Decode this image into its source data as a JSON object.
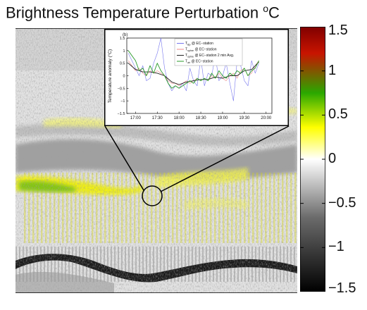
{
  "figure": {
    "title": "Brightness Temperature Perturbation",
    "title_unit_sup": "o",
    "title_unit": "C"
  },
  "colorbar": {
    "ticks": [
      "1.5",
      "1",
      "0.5",
      "0",
      "−0.5",
      "−1",
      "−1.5"
    ],
    "values": [
      1.5,
      1,
      0.5,
      0,
      -0.5,
      -1,
      -1.5
    ],
    "range": [
      -1.5,
      1.5
    ],
    "colors": [
      "#000000",
      "#6b6b6b",
      "#ffffff",
      "#ffff00",
      "#2aa800",
      "#c81400",
      "#800000"
    ]
  },
  "chart_data": {
    "type": "line",
    "panel_label": "(b)",
    "ylabel": "Temperature anomaly (°C)",
    "xlabel": "",
    "x_ticks": [
      "17:00",
      "17:30",
      "18:00",
      "18:30",
      "19:00",
      "19:30",
      "20:00"
    ],
    "y_ticks": [
      "1.5",
      "1",
      "0.5",
      "0",
      "−0.5",
      "−1",
      "−1.5"
    ],
    "xlim": [
      "17:00",
      "20:00"
    ],
    "ylim": [
      -1.5,
      1.5
    ],
    "legend_location": "top-center",
    "series": [
      {
        "legend_main": "T",
        "legend_sub": "Bp",
        "legend_rest": " @ EC−station",
        "color": "#7777ee",
        "x": [
          "16:50",
          "17:00",
          "17:05",
          "17:10",
          "17:15",
          "17:20",
          "17:25",
          "17:30",
          "17:35",
          "17:40",
          "17:45",
          "17:50",
          "17:55",
          "18:00",
          "18:05",
          "18:10",
          "18:15",
          "18:20",
          "18:25",
          "18:30",
          "18:35",
          "18:40",
          "18:45",
          "18:50",
          "18:55",
          "19:00",
          "19:05",
          "19:10",
          "19:15",
          "19:20",
          "19:25",
          "19:30",
          "19:35",
          "19:40",
          "19:45",
          "19:50"
        ],
        "y": [
          0.9,
          0.3,
          0.0,
          0.4,
          -0.2,
          -0.1,
          0.5,
          0.9,
          1.5,
          0.3,
          -0.3,
          -0.6,
          -0.4,
          -0.5,
          -0.3,
          -0.6,
          0.3,
          -0.2,
          -0.4,
          0.7,
          -0.4,
          0.1,
          0.0,
          0.8,
          -0.2,
          0.0,
          0.5,
          -0.3,
          -1.0,
          0.6,
          0.4,
          -0.2,
          -0.4,
          0.6,
          0.1,
          0.5
        ]
      },
      {
        "legend_main": "T",
        "legend_sub": "sphre",
        "legend_rest": " @ EC−station",
        "color": "#ee8888",
        "x": [
          "16:50",
          "17:00",
          "17:05",
          "17:10",
          "17:15",
          "17:20",
          "17:25",
          "17:30",
          "17:35",
          "17:40",
          "17:45",
          "17:50",
          "17:55",
          "18:00",
          "18:05",
          "18:10",
          "18:15",
          "18:20",
          "18:25",
          "18:30",
          "18:35",
          "18:40",
          "18:45",
          "18:50",
          "18:55",
          "19:00",
          "19:05",
          "19:10",
          "19:15",
          "19:20",
          "19:25",
          "19:30",
          "19:35",
          "19:40",
          "19:45",
          "19:50"
        ],
        "y": [
          0.6,
          0.2,
          0.3,
          0.1,
          0.0,
          0.2,
          0.1,
          0.2,
          0.1,
          0.0,
          -0.2,
          -0.3,
          -0.3,
          -0.4,
          -0.3,
          -0.2,
          -0.3,
          -0.2,
          -0.1,
          -0.2,
          -0.1,
          -0.2,
          0.0,
          -0.1,
          0.1,
          -0.1,
          -0.2,
          0.0,
          0.1,
          -0.1,
          0.2,
          0.3,
          0.0,
          0.1,
          0.4,
          0.6
        ]
      },
      {
        "legend_main": "T",
        "legend_sub": "sphre",
        "legend_rest": " @ EC−station 2 min Avg.",
        "color": "#222222",
        "x": [
          "16:50",
          "17:00",
          "17:10",
          "17:20",
          "17:30",
          "17:40",
          "17:50",
          "18:00",
          "18:10",
          "18:20",
          "18:30",
          "18:40",
          "18:50",
          "19:00",
          "19:10",
          "19:20",
          "19:30",
          "19:40",
          "19:50"
        ],
        "y": [
          0.5,
          0.25,
          0.15,
          0.15,
          0.1,
          0.0,
          -0.25,
          -0.35,
          -0.25,
          -0.2,
          -0.15,
          -0.15,
          -0.05,
          -0.1,
          0.0,
          0.0,
          0.2,
          0.25,
          0.55
        ]
      },
      {
        "legend_main": "T",
        "legend_sub": "air",
        "legend_rest": " @ EC−station",
        "color": "#2a9a2a",
        "x": [
          "16:50",
          "17:00",
          "17:05",
          "17:10",
          "17:15",
          "17:20",
          "17:25",
          "17:30",
          "17:35",
          "17:40",
          "17:45",
          "17:50",
          "17:55",
          "18:00",
          "18:05",
          "18:10",
          "18:15",
          "18:20",
          "18:25",
          "18:30",
          "18:35",
          "18:40",
          "18:45",
          "18:50",
          "18:55",
          "19:00",
          "19:05",
          "19:10",
          "19:15",
          "19:20",
          "19:25",
          "19:30",
          "19:35",
          "19:40",
          "19:45",
          "19:50"
        ],
        "y": [
          1.0,
          0.6,
          0.2,
          0.3,
          0.0,
          0.4,
          0.1,
          0.5,
          0.2,
          0.0,
          -0.3,
          -0.5,
          -0.4,
          -0.5,
          -0.4,
          -0.3,
          -0.2,
          -0.3,
          -0.1,
          -0.2,
          -0.1,
          -0.2,
          0.1,
          -0.1,
          0.2,
          0.0,
          -0.1,
          0.1,
          0.0,
          0.2,
          0.1,
          0.3,
          0.0,
          0.2,
          0.3,
          0.6
        ]
      }
    ]
  }
}
